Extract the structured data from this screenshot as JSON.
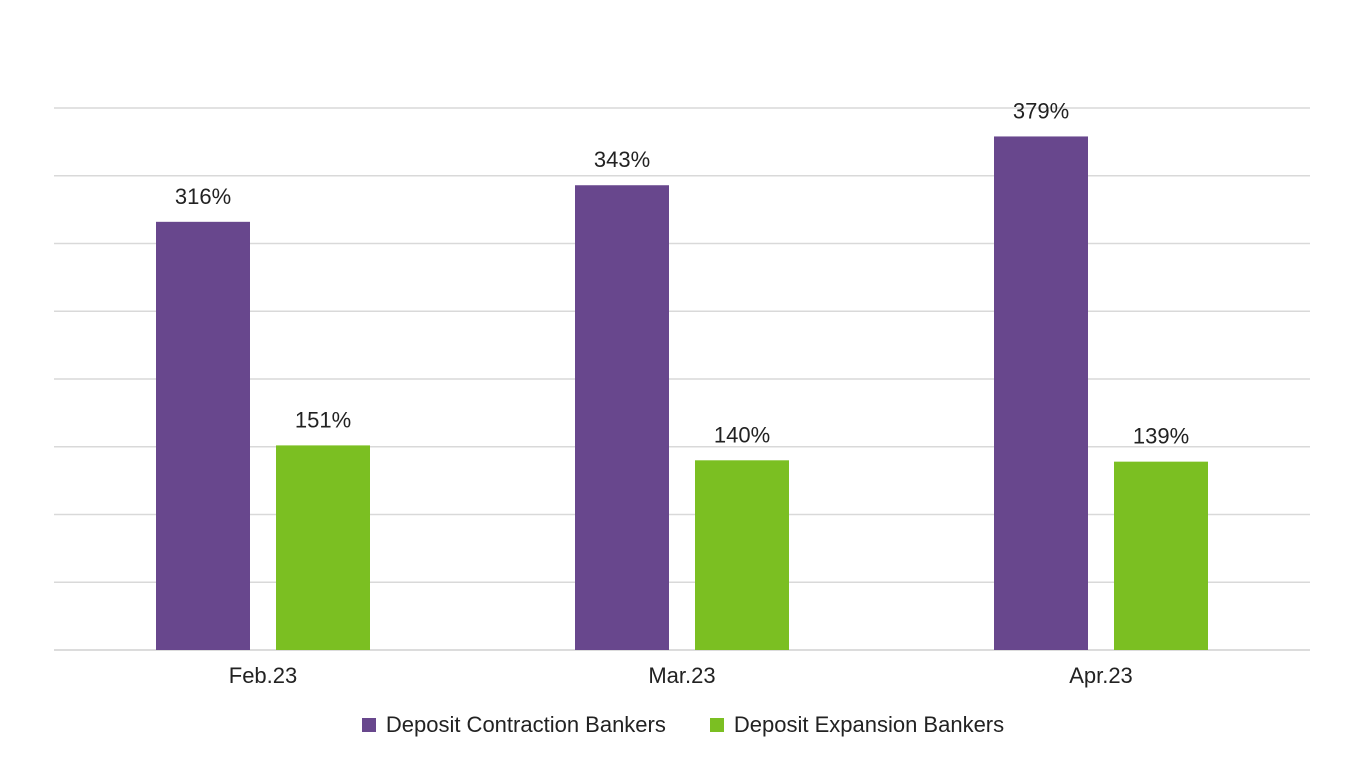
{
  "chart_data": {
    "type": "bar",
    "categories": [
      "Feb.23",
      "Mar.23",
      "Apr.23"
    ],
    "series": [
      {
        "name": "Deposit Contraction Bankers",
        "values": [
          316,
          343,
          379
        ],
        "labels": [
          "316%",
          "343%",
          "379%"
        ],
        "color": "#68478d"
      },
      {
        "name": "Deposit Expansion Bankers",
        "values": [
          151,
          140,
          139
        ],
        "labels": [
          "151%",
          "140%",
          "139%"
        ],
        "color": "#7bbf22"
      }
    ],
    "ylim": [
      0,
      400
    ],
    "grid": true,
    "legend_position": "bottom",
    "title": "",
    "xlabel": "",
    "ylabel": ""
  }
}
